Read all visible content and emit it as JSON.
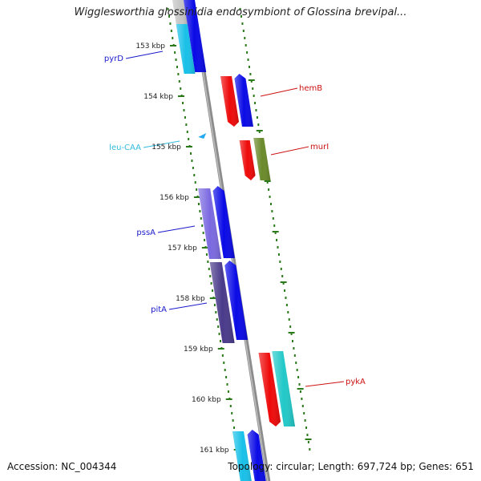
{
  "header": {
    "title": "Wigglesworthia glossinidia endosymbiont of Glossina brevipal..."
  },
  "footer": {
    "accession": "Accession: NC_004344",
    "summary": "Topology: circular; Length: 697,724 bp; Genes: 651"
  },
  "scale": {
    "unit": "kbp",
    "ticks": [
      "153 kbp",
      "154 kbp",
      "155 kbp",
      "156 kbp",
      "157 kbp",
      "158 kbp",
      "159 kbp",
      "160 kbp",
      "161 kbp"
    ]
  },
  "gene_labels": [
    {
      "name": "pyrD",
      "color": "#1a1acc"
    },
    {
      "name": "hemB",
      "color": "#cc1111"
    },
    {
      "name": "leu-CAA",
      "color": "#33bbdd"
    },
    {
      "name": "murI",
      "color": "#cc1111"
    },
    {
      "name": "pssA",
      "color": "#1a1acc"
    },
    {
      "name": "pitA",
      "color": "#1a1acc"
    },
    {
      "name": "pykA",
      "color": "#cc1111"
    }
  ],
  "colors": {
    "backbone": "#8c8c8c",
    "tick": "#2a7a1a",
    "blue": "#0a0ae6",
    "red": "#ee0a0a",
    "cyan": "#18c0e8",
    "teal": "#22c8c8",
    "olive": "#6a8a2a",
    "violet": "#7a6ae0",
    "indigo": "#4a3a8a",
    "trna": "#22aaee"
  }
}
